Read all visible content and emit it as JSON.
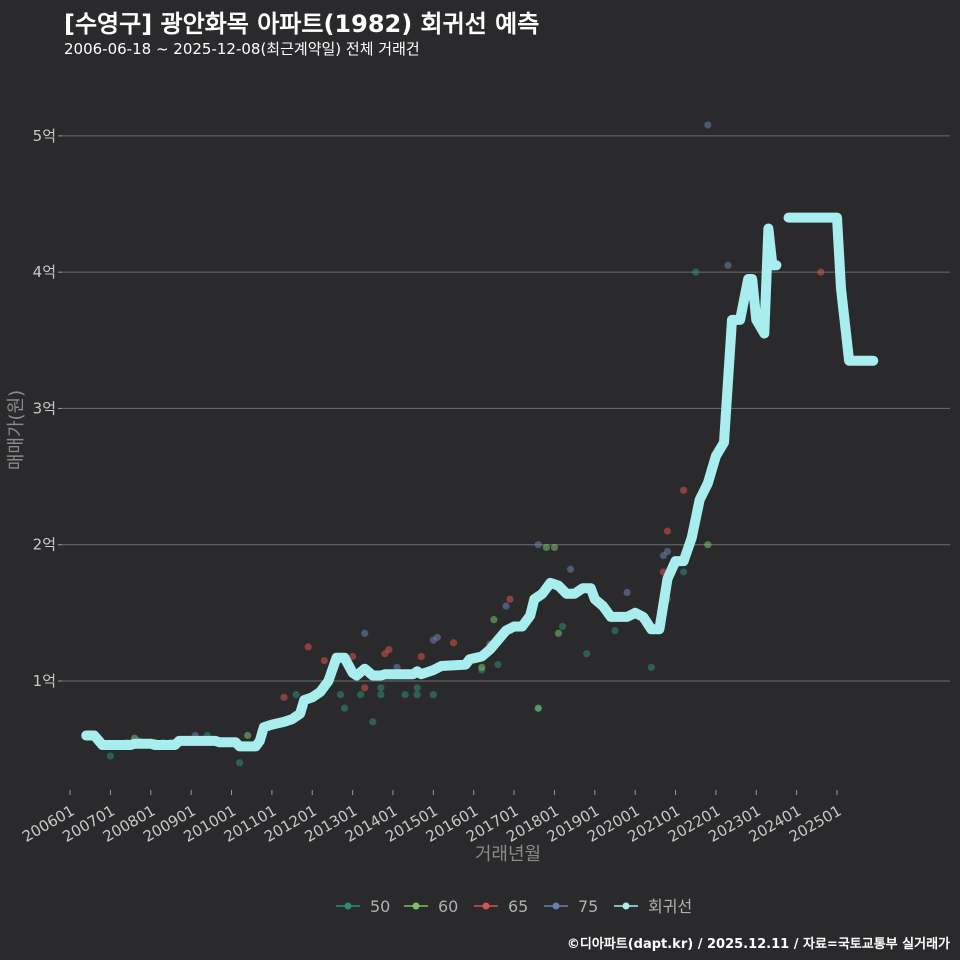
{
  "title": "[수영구] 광안화목 아파트(1982) 회귀선 예측",
  "subtitle": "2006-06-18 ~ 2025-12-08(최근계약일) 전체 거래건",
  "credit": "©디아파트(dapt.kr) / 2025.12.11 / 자료=국토교통부 실거래가",
  "chart_data": {
    "type": "scatter",
    "title": "[수영구] 광안화목 아파트(1982) 회귀선 예측",
    "xlabel": "거래년월",
    "ylabel": "매매가(원)",
    "xlim": [
      2005.8,
      2027.8
    ],
    "ylim": [
      0.2,
      5.3
    ],
    "y_unit": "억",
    "y_ticks": [
      1,
      2,
      3,
      4,
      5
    ],
    "y_tick_labels": [
      "1억",
      "2억",
      "3억",
      "4억",
      "5억"
    ],
    "x_ticks": [
      2006,
      2007,
      2008,
      2009,
      2010,
      2011,
      2012,
      2013,
      2014,
      2015,
      2016,
      2017,
      2018,
      2019,
      2020,
      2021,
      2022,
      2023,
      2024,
      2025
    ],
    "x_tick_labels": [
      "200601",
      "200701",
      "200801",
      "200901",
      "201001",
      "201101",
      "201201",
      "201301",
      "201401",
      "201501",
      "201601",
      "201701",
      "201801",
      "201901",
      "202001",
      "202101",
      "202201",
      "202301",
      "202401",
      "202501"
    ],
    "legend": [
      "50",
      "60",
      "65",
      "75",
      "회귀선"
    ],
    "colors": {
      "50": "#2e8b7a",
      "60": "#7ac36a",
      "65": "#d9534f",
      "75": "#6b7fb3",
      "회귀선": "#a8eeee"
    },
    "series": [
      {
        "name": "50",
        "points": [
          [
            2006.5,
            0.6
          ],
          [
            2007,
            0.45
          ],
          [
            2007.4,
            0.55
          ],
          [
            2008.3,
            0.55
          ],
          [
            2009.4,
            0.6
          ],
          [
            2010.2,
            0.4
          ],
          [
            2011.6,
            0.9
          ],
          [
            2012.7,
            0.9
          ],
          [
            2012.8,
            0.8
          ],
          [
            2013.2,
            0.9
          ],
          [
            2013.5,
            0.7
          ],
          [
            2013.7,
            0.95
          ],
          [
            2013.7,
            0.9
          ],
          [
            2014.3,
            0.9
          ],
          [
            2014.6,
            0.9
          ],
          [
            2014.6,
            0.95
          ],
          [
            2015,
            0.9
          ],
          [
            2016.2,
            1.08
          ],
          [
            2016.6,
            1.12
          ],
          [
            2017.6,
            0.8
          ],
          [
            2018.2,
            1.4
          ],
          [
            2018.8,
            1.2
          ],
          [
            2019.5,
            1.37
          ],
          [
            2020.4,
            1.1
          ],
          [
            2020.8,
            1.6
          ],
          [
            2021.2,
            1.8
          ],
          [
            2021.5,
            4.0
          ]
        ]
      },
      {
        "name": "60",
        "points": [
          [
            2006.6,
            0.6
          ],
          [
            2007.6,
            0.58
          ],
          [
            2008.1,
            0.55
          ],
          [
            2010.4,
            0.6
          ],
          [
            2016.2,
            1.1
          ],
          [
            2016.5,
            1.45
          ],
          [
            2017.6,
            0.8
          ],
          [
            2017.8,
            1.98
          ],
          [
            2018,
            1.98
          ],
          [
            2018.1,
            1.35
          ],
          [
            2021.8,
            2.0
          ]
        ]
      },
      {
        "name": "65",
        "points": [
          [
            2011.3,
            0.88
          ],
          [
            2011.9,
            1.25
          ],
          [
            2012.3,
            1.15
          ],
          [
            2013,
            1.18
          ],
          [
            2013.3,
            0.95
          ],
          [
            2013.8,
            1.2
          ],
          [
            2013.9,
            1.23
          ],
          [
            2014.7,
            1.18
          ],
          [
            2015.5,
            1.28
          ],
          [
            2016.9,
            1.6
          ],
          [
            2020.7,
            1.8
          ],
          [
            2020.8,
            2.1
          ],
          [
            2021.2,
            2.4
          ],
          [
            2024.6,
            4.0
          ]
        ]
      },
      {
        "name": "75",
        "points": [
          [
            2007.7,
            0.56
          ],
          [
            2008.5,
            0.55
          ],
          [
            2009.1,
            0.6
          ],
          [
            2013.3,
            1.35
          ],
          [
            2014.1,
            1.1
          ],
          [
            2015,
            1.3
          ],
          [
            2015.1,
            1.32
          ],
          [
            2016.4,
            1.27
          ],
          [
            2016.8,
            1.55
          ],
          [
            2017.6,
            2.0
          ],
          [
            2018.4,
            1.82
          ],
          [
            2019.8,
            1.65
          ],
          [
            2020.7,
            1.92
          ],
          [
            2020.8,
            1.95
          ],
          [
            2021.8,
            5.08
          ],
          [
            2022.3,
            4.05
          ]
        ]
      },
      {
        "name": "회귀선",
        "segments": [
          [
            [
              2006.4,
              0.6
            ],
            [
              2006.6,
              0.6
            ],
            [
              2006.8,
              0.53
            ],
            [
              2007.5,
              0.53
            ],
            [
              2007.6,
              0.54
            ],
            [
              2008,
              0.54
            ],
            [
              2008.1,
              0.53
            ],
            [
              2008.6,
              0.53
            ],
            [
              2008.7,
              0.56
            ],
            [
              2009.6,
              0.56
            ],
            [
              2009.7,
              0.55
            ],
            [
              2010.1,
              0.55
            ],
            [
              2010.2,
              0.52
            ],
            [
              2010.6,
              0.52
            ],
            [
              2010.7,
              0.56
            ],
            [
              2010.8,
              0.66
            ],
            [
              2011,
              0.68
            ],
            [
              2011.3,
              0.7
            ],
            [
              2011.5,
              0.72
            ],
            [
              2011.7,
              0.76
            ],
            [
              2011.8,
              0.86
            ],
            [
              2012,
              0.88
            ],
            [
              2012.2,
              0.92
            ],
            [
              2012.4,
              1.0
            ],
            [
              2012.6,
              1.17
            ],
            [
              2012.8,
              1.17
            ],
            [
              2013,
              1.06
            ],
            [
              2013.1,
              1.04
            ],
            [
              2013.3,
              1.09
            ],
            [
              2013.5,
              1.04
            ],
            [
              2013.7,
              1.04
            ],
            [
              2013.8,
              1.05
            ],
            [
              2014.5,
              1.05
            ],
            [
              2014.6,
              1.07
            ],
            [
              2014.7,
              1.05
            ],
            [
              2015,
              1.08
            ],
            [
              2015.2,
              1.11
            ],
            [
              2015.8,
              1.12
            ],
            [
              2015.9,
              1.16
            ],
            [
              2016.2,
              1.18
            ],
            [
              2016.4,
              1.23
            ],
            [
              2016.6,
              1.3
            ],
            [
              2016.8,
              1.37
            ],
            [
              2017,
              1.4
            ],
            [
              2017.2,
              1.4
            ],
            [
              2017.4,
              1.48
            ],
            [
              2017.5,
              1.6
            ],
            [
              2017.7,
              1.64
            ],
            [
              2017.9,
              1.72
            ],
            [
              2018.1,
              1.7
            ],
            [
              2018.3,
              1.64
            ],
            [
              2018.5,
              1.64
            ],
            [
              2018.7,
              1.68
            ],
            [
              2018.9,
              1.68
            ],
            [
              2019,
              1.6
            ],
            [
              2019.2,
              1.55
            ],
            [
              2019.4,
              1.47
            ],
            [
              2019.6,
              1.47
            ],
            [
              2019.8,
              1.47
            ],
            [
              2020,
              1.5
            ],
            [
              2020.2,
              1.47
            ],
            [
              2020.4,
              1.38
            ],
            [
              2020.6,
              1.38
            ],
            [
              2020.8,
              1.75
            ],
            [
              2021,
              1.88
            ],
            [
              2021.2,
              1.88
            ],
            [
              2021.4,
              2.05
            ],
            [
              2021.6,
              2.33
            ],
            [
              2021.8,
              2.45
            ],
            [
              2022,
              2.65
            ],
            [
              2022.2,
              2.75
            ],
            [
              2022.4,
              3.65
            ],
            [
              2022.6,
              3.65
            ],
            [
              2022.8,
              3.95
            ],
            [
              2022.9,
              3.95
            ],
            [
              2023,
              3.65
            ],
            [
              2023.2,
              3.55
            ],
            [
              2023.3,
              4.32
            ],
            [
              2023.4,
              4.05
            ],
            [
              2023.5,
              4.05
            ]
          ],
          [
            [
              2023.8,
              4.4
            ],
            [
              2024.8,
              4.4
            ],
            [
              2025.0,
              4.4
            ],
            [
              2025.1,
              3.88
            ],
            [
              2025.3,
              3.35
            ],
            [
              2025.7,
              3.35
            ],
            [
              2025.9,
              3.35
            ]
          ]
        ]
      }
    ]
  }
}
